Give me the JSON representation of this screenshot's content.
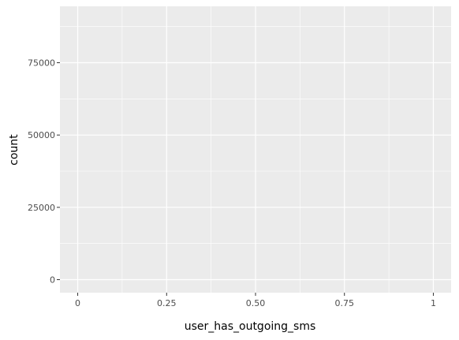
{
  "chart_data": {
    "type": "bar",
    "title": "",
    "xlabel": "user_has_outgoing_sms",
    "ylabel": "count",
    "x_ticks": [
      0,
      0.25,
      0.5,
      0.75,
      1
    ],
    "x_tick_labels": [
      "0",
      "0.25",
      "0.50",
      "0.75",
      "1"
    ],
    "y_ticks": [
      0,
      25000,
      50000,
      75000
    ],
    "y_tick_labels": [
      "0",
      "25000",
      "50000",
      "75000"
    ],
    "xlim": [
      -0.05,
      1.05
    ],
    "ylim": [
      -4500,
      94500
    ],
    "grid": true,
    "panel_background": "#ebebeb",
    "grid_color": "#ffffff",
    "series": []
  }
}
